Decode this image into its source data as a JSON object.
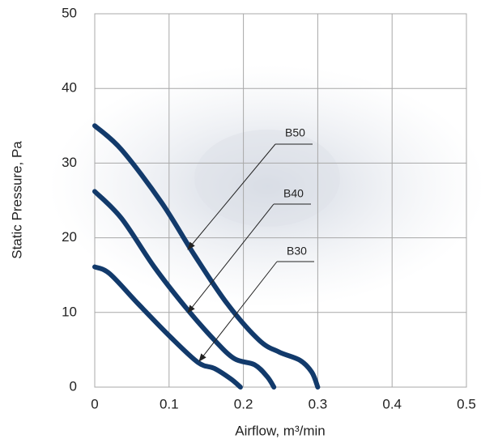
{
  "chart_data": {
    "type": "line",
    "x_label": "Airflow, m³/min",
    "y_label": "Static Pressure, Pa",
    "xlim": [
      0,
      0.5
    ],
    "ylim": [
      0,
      50
    ],
    "xticks": [
      0,
      0.1,
      0.2,
      0.3,
      0.4,
      0.5
    ],
    "yticks": [
      0,
      10,
      20,
      30,
      40,
      50
    ],
    "grid": true,
    "series": [
      {
        "name": "B50",
        "color": "#123a6b",
        "x": [
          0,
          0.036,
          0.09,
          0.134,
          0.178,
          0.221,
          0.248,
          0.276,
          0.292,
          0.3
        ],
        "values": [
          35,
          31.8,
          24.7,
          17.7,
          11.2,
          6.3,
          4.7,
          3.6,
          2.0,
          0
        ]
      },
      {
        "name": "B40",
        "color": "#123a6b",
        "x": [
          0,
          0.036,
          0.08,
          0.123,
          0.161,
          0.188,
          0.215,
          0.232,
          0.241
        ],
        "values": [
          26.2,
          22.6,
          16.1,
          10.6,
          6.3,
          3.8,
          3.0,
          1.4,
          0
        ]
      },
      {
        "name": "B30",
        "color": "#123a6b",
        "x": [
          0,
          0.02,
          0.058,
          0.101,
          0.139,
          0.161,
          0.183,
          0.196
        ],
        "values": [
          16.1,
          15.2,
          11.2,
          6.8,
          3.3,
          2.5,
          1.1,
          0
        ]
      }
    ]
  }
}
